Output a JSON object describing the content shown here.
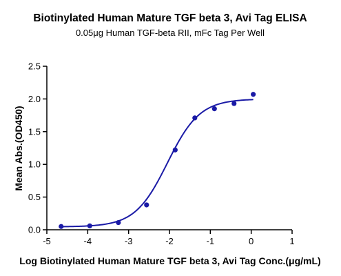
{
  "chart_data": {
    "type": "scatter",
    "title": "Biotinylated  Human Mature TGF beta 3, Avi Tag ELISA",
    "subtitle": "0.05μg Human TGF-beta RII, mFc Tag Per Well",
    "xlabel": "Log Biotinylated  Human Mature TGF beta 3, Avi Tag Conc.(μg/mL)",
    "ylabel": "Mean Abs.(OD450)",
    "xlim": [
      -5,
      1
    ],
    "ylim": [
      0,
      2.5
    ],
    "xticks": [
      "-5",
      "-4",
      "-3",
      "-2",
      "-1",
      "0",
      "1"
    ],
    "yticks": [
      "0.0",
      "0.5",
      "1.0",
      "1.5",
      "2.0",
      "2.5"
    ],
    "grid": false,
    "series": [
      {
        "x": [
          -4.65,
          -3.95,
          -3.25,
          -2.56,
          -1.86,
          -1.38,
          -0.9,
          -0.42,
          0.05
        ],
        "y": [
          0.05,
          0.06,
          0.11,
          0.38,
          1.22,
          1.71,
          1.85,
          1.93,
          2.07
        ],
        "fit": {
          "model": "4PL",
          "bottom": 0.045,
          "top": 2.0,
          "logEC50": -2.05,
          "hill": 1.1
        },
        "color": "#1a1aa6"
      }
    ]
  }
}
